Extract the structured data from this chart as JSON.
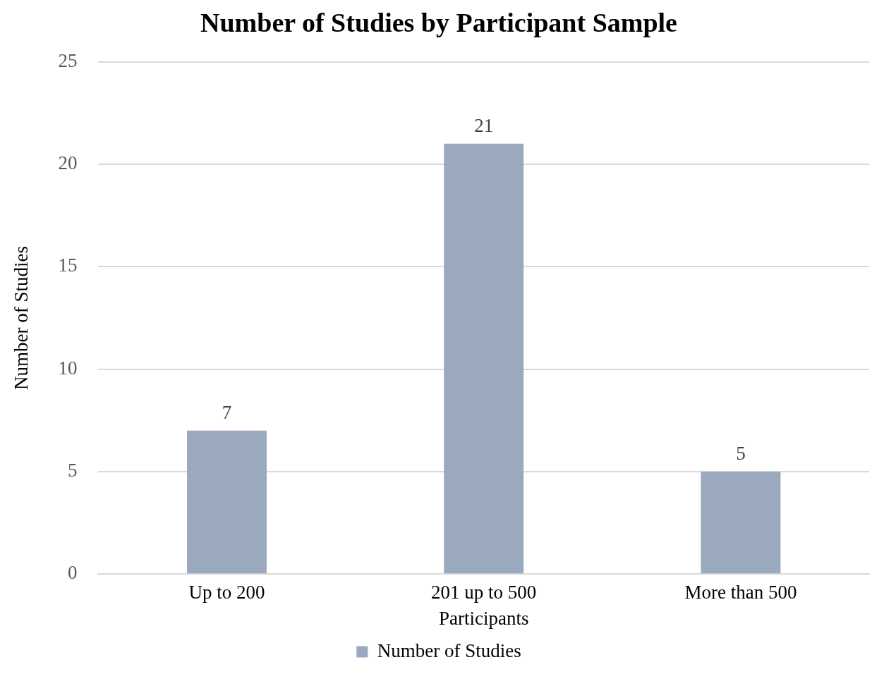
{
  "chart_data": {
    "type": "bar",
    "title": "Number of Studies by Participant Sample",
    "xlabel": "Participants",
    "ylabel": "Number of Studies",
    "categories": [
      "Up to 200",
      "201 up to 500",
      "More than 500"
    ],
    "series": [
      {
        "name": "Number of Studies",
        "color": "#9aa9be",
        "values": [
          7,
          21,
          5
        ]
      }
    ],
    "ylim": [
      0,
      25
    ],
    "yticks": [
      0,
      5,
      10,
      15,
      20,
      25
    ],
    "grid": "y",
    "legend": "bottom",
    "data_labels": true
  }
}
